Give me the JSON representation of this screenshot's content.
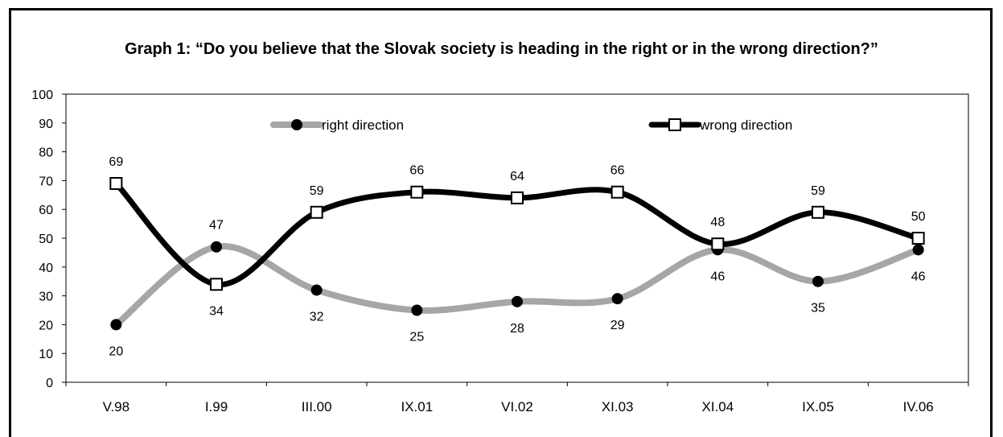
{
  "chart_data": {
    "type": "line",
    "title": "Graph 1: “Do you believe that the Slovak society is heading in the right or in the wrong direction?”",
    "xlabel": "",
    "ylabel": "",
    "ylim": [
      0,
      100
    ],
    "yticks": [
      "0",
      "10",
      "20",
      "30",
      "40",
      "50",
      "60",
      "70",
      "80",
      "90",
      "100"
    ],
    "categories": [
      "V.98",
      "I.99",
      "III.00",
      "IX.01",
      "VI.02",
      "XI.03",
      "XI.04",
      "IX.05",
      "IV.06"
    ],
    "series": [
      {
        "name": "right direction",
        "values": [
          20,
          47,
          32,
          25,
          28,
          29,
          46,
          35,
          46
        ],
        "labels": [
          "20",
          "47",
          "32",
          "25",
          "28",
          "29",
          "46",
          "35",
          "46"
        ],
        "color": "#a6a6a6",
        "marker": "filled-circle"
      },
      {
        "name": "wrong direction",
        "values": [
          69,
          34,
          59,
          66,
          64,
          66,
          48,
          59,
          50
        ],
        "labels": [
          "69",
          "34",
          "59",
          "66",
          "64",
          "66",
          "48",
          "59",
          "50"
        ],
        "color": "#000000",
        "marker": "hollow-square"
      }
    ],
    "grid": false,
    "legend": "top"
  }
}
